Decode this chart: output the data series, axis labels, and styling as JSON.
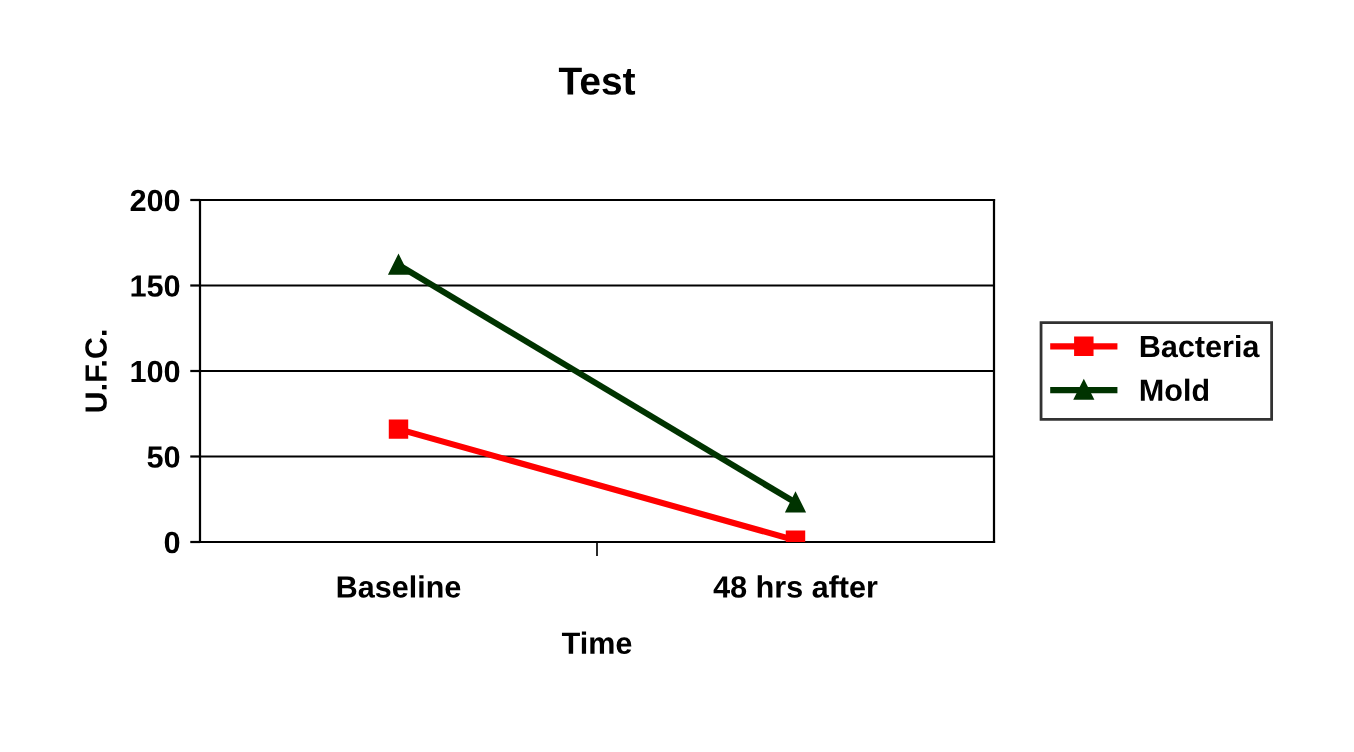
{
  "chart_data": {
    "type": "line",
    "title": "Test",
    "xlabel": "Time",
    "ylabel": "U.F.C.",
    "categories": [
      "Baseline",
      "48 hrs after"
    ],
    "series": [
      {
        "name": "Bacteria",
        "color": "#ff0000",
        "marker": "square",
        "values": [
          66,
          1
        ]
      },
      {
        "name": "Mold",
        "color": "#003300",
        "marker": "triangle",
        "values": [
          162,
          23
        ]
      }
    ],
    "ylim": [
      0,
      200
    ],
    "yticks": [
      0,
      50,
      100,
      150,
      200
    ],
    "grid": "y",
    "legend": "right"
  }
}
